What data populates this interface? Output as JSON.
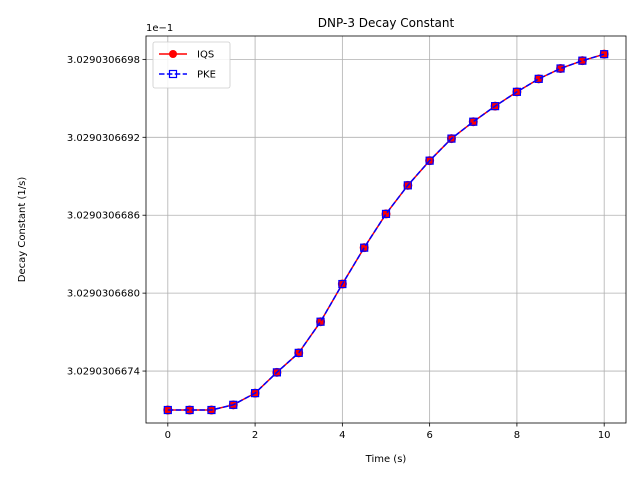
{
  "chart_data": {
    "type": "line",
    "title": "DNP-3 Decay Constant",
    "xlabel": "Time (s)",
    "ylabel": "Decay Constant (1/s)",
    "y_offset_label": "1e−1",
    "xlim": [
      -0.5,
      10.5
    ],
    "ylim": [
      3.029030667,
      3.02903066998
    ],
    "x_ticks": [
      0,
      2,
      4,
      6,
      8,
      10
    ],
    "x_tick_labels": [
      "0",
      "2",
      "4",
      "6",
      "8",
      "10"
    ],
    "y_ticks": [
      3.0290306674,
      3.029030668,
      3.0290306686,
      3.0290306692,
      3.0290306698
    ],
    "y_tick_labels": [
      "3.0290306674",
      "3.0290306680",
      "3.0290306686",
      "3.0290306692",
      "3.0290306698"
    ],
    "grid": true,
    "legend_position": "top-left",
    "x": [
      0,
      0.5,
      1,
      1.5,
      2,
      2.5,
      3,
      3.5,
      4,
      4.5,
      5,
      5.5,
      6,
      6.5,
      7,
      7.5,
      8,
      8.5,
      9,
      9.5,
      10
    ],
    "series": [
      {
        "name": "IQS",
        "color": "#ff0000",
        "linestyle": "solid",
        "marker": "circle",
        "values": [
          3.0290306671,
          3.0290306671,
          3.0290306671,
          3.02903066714,
          3.02903066723,
          3.02903066739,
          3.02903066754,
          3.02903066778,
          3.02903066807,
          3.02903066835,
          3.02903066861,
          3.02903066883,
          3.02903066902,
          3.02903066919,
          3.02903066932,
          3.02903066944,
          3.02903066955,
          3.02903066965,
          3.02903066973,
          3.02903066979,
          3.02903066984
        ]
      },
      {
        "name": "PKE",
        "color": "#0000ff",
        "linestyle": "dashed",
        "marker": "square",
        "values": [
          3.0290306671,
          3.0290306671,
          3.0290306671,
          3.02903066714,
          3.02903066723,
          3.02903066739,
          3.02903066754,
          3.02903066778,
          3.02903066807,
          3.02903066835,
          3.02903066861,
          3.02903066883,
          3.02903066902,
          3.02903066919,
          3.02903066932,
          3.02903066944,
          3.02903066955,
          3.02903066965,
          3.02903066973,
          3.02903066979,
          3.02903066984
        ]
      }
    ]
  }
}
